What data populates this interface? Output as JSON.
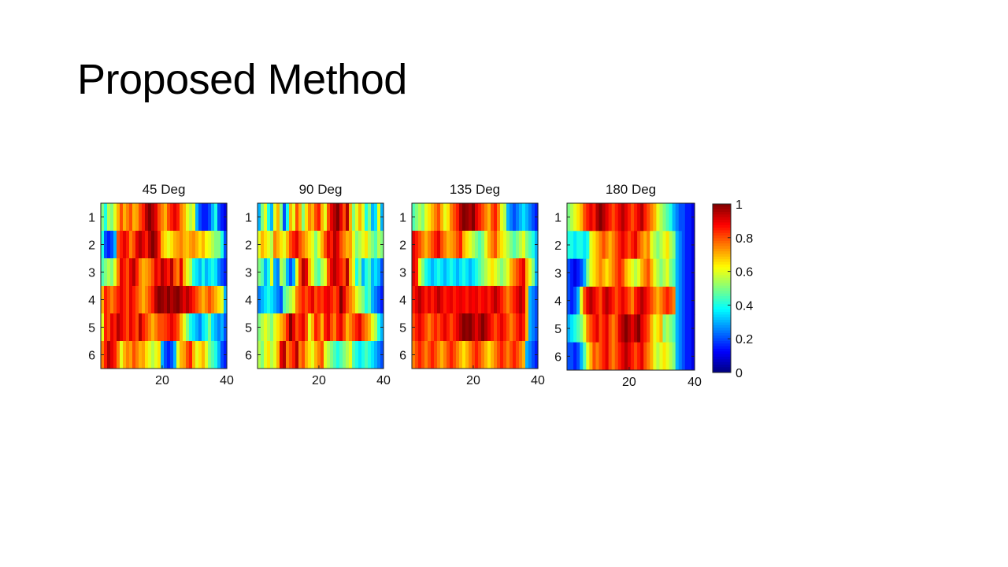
{
  "slide": {
    "title": "Proposed Method"
  },
  "chart_data": [
    {
      "type": "heatmap",
      "title": "45 Deg",
      "rows": [
        1,
        2,
        3,
        4,
        5,
        6
      ],
      "x_ticks": [
        20,
        40
      ],
      "xlim": [
        1,
        40
      ],
      "values": [
        [
          0.5,
          0.4,
          0.55,
          0.5,
          0.6,
          0.7,
          0.8,
          0.7,
          0.75,
          0.8,
          0.7,
          0.72,
          0.8,
          0.85,
          0.95,
          1,
          0.95,
          0.9,
          0.8,
          0.75,
          0.7,
          0.8,
          0.85,
          0.9,
          0.85,
          0.75,
          0.7,
          0.6,
          0.55,
          0.6,
          0.3,
          0.2,
          0.15,
          0.15,
          0.2,
          0.3,
          0.4,
          0.2,
          0.15,
          0.1
        ],
        [
          0.4,
          0.2,
          0.15,
          0.2,
          0.3,
          0.8,
          0.85,
          0.9,
          0.85,
          0.75,
          0.8,
          0.9,
          0.95,
          0.9,
          0.85,
          0.95,
          1,
          0.95,
          0.85,
          0.7,
          0.65,
          0.6,
          0.65,
          0.7,
          0.72,
          0.75,
          0.7,
          0.68,
          0.72,
          0.74,
          0.7,
          0.65,
          0.7,
          0.62,
          0.6,
          0.55,
          0.5,
          0.5,
          0.4,
          0.2
        ],
        [
          0.45,
          0.5,
          0.55,
          0.5,
          0.6,
          0.75,
          0.9,
          0.85,
          0.8,
          0.9,
          0.95,
          0.85,
          0.75,
          0.7,
          0.72,
          0.75,
          0.8,
          0.9,
          0.85,
          0.95,
          0.9,
          0.85,
          0.95,
          0.8,
          0.75,
          0.9,
          0.7,
          0.6,
          0.55,
          0.4,
          0.35,
          0.3,
          0.4,
          0.3,
          0.35,
          0.4,
          0.35,
          0.25,
          0.2,
          0.15
        ],
        [
          0.7,
          0.85,
          0.8,
          0.75,
          0.8,
          0.85,
          0.9,
          0.85,
          0.8,
          0.9,
          0.85,
          0.8,
          0.75,
          0.7,
          0.75,
          0.8,
          0.85,
          0.95,
          1,
          0.98,
          0.95,
          1,
          0.95,
          0.98,
          1,
          0.95,
          0.9,
          0.95,
          0.9,
          0.85,
          0.8,
          0.75,
          0.7,
          0.75,
          0.8,
          0.75,
          0.7,
          0.65,
          0.6,
          0.3
        ],
        [
          0.6,
          0.85,
          0.8,
          0.9,
          0.85,
          0.95,
          0.9,
          0.85,
          0.8,
          0.9,
          0.85,
          0.8,
          0.95,
          0.85,
          0.8,
          0.75,
          0.7,
          0.75,
          0.8,
          0.8,
          0.82,
          0.85,
          0.9,
          0.85,
          0.8,
          0.7,
          0.6,
          0.5,
          0.4,
          0.35,
          0.3,
          0.25,
          0.35,
          0.4,
          0.5,
          0.35,
          0.3,
          0.25,
          0.3,
          0.2
        ],
        [
          0.75,
          0.85,
          0.95,
          0.9,
          0.85,
          0.75,
          0.6,
          0.7,
          0.75,
          0.72,
          0.8,
          0.75,
          0.7,
          0.72,
          0.65,
          0.6,
          0.55,
          0.6,
          0.65,
          0.3,
          0.2,
          0.15,
          0.2,
          0.3,
          0.6,
          0.7,
          0.72,
          0.8,
          0.85,
          0.7,
          0.6,
          0.65,
          0.7,
          0.6,
          0.5,
          0.45,
          0.4,
          0.3,
          0.2,
          0.15
        ]
      ]
    },
    {
      "type": "heatmap",
      "title": "90 Deg",
      "rows": [
        1,
        2,
        3,
        4,
        5,
        6
      ],
      "x_ticks": [
        20,
        40
      ],
      "xlim": [
        1,
        40
      ],
      "values": [
        [
          0.3,
          0.5,
          0.6,
          0.4,
          0.3,
          0.6,
          0.7,
          0.5,
          0.2,
          0.4,
          0.7,
          0.6,
          0.8,
          0.7,
          0.5,
          0.65,
          0.75,
          0.7,
          0.8,
          0.85,
          0.7,
          0.6,
          0.8,
          0.9,
          0.95,
          1,
          0.9,
          0.8,
          0.95,
          0.7,
          0.5,
          0.6,
          0.7,
          0.6,
          0.4,
          0.5,
          0.3,
          0.35,
          0.6,
          0.3
        ],
        [
          0.6,
          0.7,
          0.65,
          0.6,
          0.55,
          0.75,
          0.7,
          0.65,
          0.6,
          0.7,
          0.8,
          0.85,
          0.9,
          0.8,
          0.75,
          0.7,
          0.65,
          0.6,
          0.5,
          0.6,
          0.7,
          0.8,
          0.9,
          0.85,
          0.95,
          0.9,
          0.8,
          0.75,
          0.7,
          0.72,
          0.6,
          0.5,
          0.55,
          0.6,
          0.65,
          0.55,
          0.5,
          0.45,
          0.55,
          0.5
        ],
        [
          0.5,
          0.45,
          0.3,
          0.4,
          0.6,
          0.3,
          0.25,
          0.55,
          0.5,
          0.3,
          0.2,
          0.3,
          0.6,
          0.8,
          0.95,
          0.9,
          0.7,
          0.6,
          0.5,
          0.45,
          0.55,
          0.6,
          0.8,
          0.9,
          0.95,
          0.9,
          0.85,
          0.8,
          0.95,
          0.7,
          0.6,
          0.4,
          0.5,
          0.3,
          0.4,
          0.45,
          0.3,
          0.35,
          0.3,
          0.2
        ],
        [
          0.25,
          0.3,
          0.35,
          0.4,
          0.35,
          0.3,
          0.25,
          0.2,
          0.45,
          0.5,
          0.55,
          0.6,
          0.75,
          0.8,
          0.85,
          0.8,
          0.85,
          0.9,
          0.8,
          0.85,
          0.82,
          0.88,
          0.9,
          0.85,
          0.8,
          0.85,
          1,
          0.9,
          0.8,
          0.75,
          0.7,
          0.6,
          0.55,
          0.5,
          0.4,
          0.45,
          0.3,
          0.25,
          0.2,
          0.15
        ],
        [
          0.5,
          0.55,
          0.6,
          0.55,
          0.5,
          0.6,
          0.65,
          0.7,
          0.75,
          0.85,
          1,
          0.9,
          0.8,
          0.85,
          0.9,
          0.8,
          0.6,
          0.7,
          0.85,
          0.8,
          0.7,
          0.85,
          0.9,
          0.8,
          0.75,
          0.85,
          0.9,
          0.8,
          0.7,
          0.75,
          0.8,
          0.85,
          0.9,
          0.8,
          0.75,
          0.7,
          0.6,
          0.55,
          0.4,
          0.3
        ],
        [
          0.55,
          0.5,
          0.6,
          0.65,
          0.55,
          0.6,
          0.7,
          0.9,
          0.95,
          0.75,
          0.8,
          0.85,
          0.95,
          0.75,
          0.8,
          0.7,
          0.65,
          0.6,
          0.7,
          0.75,
          0.8,
          0.6,
          0.55,
          0.5,
          0.45,
          0.4,
          0.45,
          0.5,
          0.55,
          0.6,
          0.45,
          0.4,
          0.35,
          0.4,
          0.45,
          0.4,
          0.35,
          0.3,
          0.25,
          0.2
        ]
      ]
    },
    {
      "type": "heatmap",
      "title": "135 Deg",
      "rows": [
        1,
        2,
        3,
        4,
        5,
        6
      ],
      "x_ticks": [
        20,
        40
      ],
      "xlim": [
        1,
        40
      ],
      "values": [
        [
          0.45,
          0.5,
          0.55,
          0.5,
          0.6,
          0.65,
          0.7,
          0.75,
          0.8,
          0.7,
          0.6,
          0.65,
          0.75,
          0.8,
          0.85,
          0.95,
          1,
          0.98,
          0.95,
          1,
          0.9,
          0.85,
          0.8,
          0.75,
          0.7,
          0.8,
          0.85,
          0.75,
          0.6,
          0.55,
          0.3,
          0.25,
          0.2,
          0.25,
          0.3,
          0.35,
          0.3,
          0.25,
          0.2,
          0.15
        ],
        [
          0.9,
          0.85,
          0.8,
          0.75,
          0.7,
          0.75,
          0.8,
          0.85,
          0.9,
          0.8,
          0.75,
          0.7,
          0.72,
          0.75,
          0.8,
          0.85,
          0.7,
          0.65,
          0.6,
          0.55,
          0.5,
          0.45,
          0.5,
          0.6,
          0.7,
          0.75,
          0.8,
          0.7,
          0.65,
          0.6,
          0.55,
          0.5,
          0.45,
          0.5,
          0.55,
          0.6,
          0.5,
          0.45,
          0.4,
          0.3
        ],
        [
          0.9,
          0.85,
          0.6,
          0.5,
          0.4,
          0.35,
          0.3,
          0.35,
          0.4,
          0.35,
          0.3,
          0.35,
          0.4,
          0.35,
          0.3,
          0.35,
          0.4,
          0.35,
          0.3,
          0.35,
          0.4,
          0.45,
          0.5,
          0.55,
          0.6,
          0.65,
          0.6,
          0.55,
          0.5,
          0.55,
          0.6,
          0.7,
          0.75,
          0.8,
          0.85,
          0.9,
          0.7,
          0.6,
          0.5,
          0.3
        ],
        [
          0.85,
          0.9,
          0.95,
          0.9,
          0.85,
          0.9,
          0.85,
          0.9,
          0.95,
          0.9,
          0.85,
          0.88,
          0.9,
          0.85,
          0.88,
          0.9,
          0.88,
          0.85,
          0.9,
          0.88,
          0.9,
          0.85,
          0.88,
          0.9,
          0.85,
          0.9,
          0.95,
          0.9,
          0.85,
          0.8,
          0.75,
          0.8,
          0.85,
          0.9,
          0.95,
          0.9,
          0.7,
          0.3,
          0.25,
          0.2
        ],
        [
          0.8,
          0.85,
          0.9,
          0.85,
          0.8,
          0.75,
          0.8,
          0.85,
          0.8,
          0.85,
          0.9,
          0.85,
          0.8,
          0.85,
          0.9,
          0.95,
          1,
          0.98,
          1,
          0.95,
          0.9,
          0.95,
          1,
          0.95,
          0.9,
          0.85,
          0.8,
          0.85,
          0.9,
          0.85,
          0.8,
          0.75,
          0.8,
          0.85,
          0.9,
          0.85,
          0.7,
          0.3,
          0.25,
          0.2
        ],
        [
          0.75,
          0.8,
          0.85,
          0.8,
          0.75,
          0.8,
          0.85,
          0.8,
          0.75,
          0.7,
          0.75,
          0.8,
          0.85,
          0.8,
          0.75,
          0.7,
          0.65,
          0.7,
          0.75,
          0.8,
          0.85,
          0.8,
          0.75,
          0.7,
          0.65,
          0.7,
          0.75,
          0.8,
          0.85,
          0.8,
          0.75,
          0.8,
          0.85,
          0.8,
          0.75,
          0.7,
          0.3,
          0.25,
          0.2,
          0.15
        ]
      ]
    },
    {
      "type": "heatmap",
      "title": "180 Deg",
      "rows": [
        1,
        2,
        3,
        4,
        5,
        6
      ],
      "x_ticks": [
        20,
        40
      ],
      "xlim": [
        1,
        40
      ],
      "values": [
        [
          0.5,
          0.55,
          0.6,
          0.65,
          0.7,
          0.8,
          0.85,
          0.9,
          0.85,
          0.95,
          1,
          0.95,
          0.9,
          0.85,
          0.8,
          0.85,
          0.9,
          0.95,
          0.9,
          0.85,
          0.8,
          0.85,
          0.9,
          0.95,
          0.85,
          0.8,
          0.75,
          0.7,
          0.6,
          0.55,
          0.5,
          0.45,
          0.4,
          0.3,
          0.25,
          0.2,
          0.2,
          0.15,
          0.15,
          0.1
        ],
        [
          0.4,
          0.4,
          0.35,
          0.4,
          0.4,
          0.35,
          0.4,
          0.6,
          0.65,
          0.7,
          0.75,
          0.8,
          0.75,
          0.7,
          0.75,
          0.8,
          0.85,
          0.9,
          0.85,
          0.8,
          0.85,
          0.9,
          0.8,
          0.75,
          0.7,
          0.75,
          0.6,
          0.55,
          0.5,
          0.55,
          0.6,
          0.65,
          0.55,
          0.5,
          0.3,
          0.25,
          0.2,
          0.15,
          0.15,
          0.1
        ],
        [
          0.2,
          0.15,
          0.1,
          0.15,
          0.2,
          0.3,
          0.5,
          0.6,
          0.65,
          0.7,
          0.75,
          0.7,
          0.65,
          0.7,
          0.75,
          0.8,
          0.85,
          0.8,
          0.7,
          0.65,
          0.6,
          0.55,
          0.6,
          0.7,
          0.75,
          0.8,
          0.7,
          0.6,
          0.55,
          0.5,
          0.55,
          0.6,
          0.5,
          0.45,
          0.3,
          0.25,
          0.2,
          0.15,
          0.15,
          0.1
        ],
        [
          0.2,
          0.15,
          0.2,
          0.3,
          0.6,
          0.8,
          0.9,
          0.95,
          0.9,
          0.85,
          0.8,
          0.9,
          0.95,
          0.9,
          0.85,
          0.8,
          0.85,
          0.9,
          0.85,
          0.8,
          0.75,
          0.85,
          0.9,
          0.95,
          0.9,
          0.85,
          0.8,
          0.75,
          0.7,
          0.75,
          0.8,
          0.85,
          0.8,
          0.75,
          0.3,
          0.25,
          0.2,
          0.15,
          0.15,
          0.1
        ],
        [
          0.3,
          0.35,
          0.4,
          0.45,
          0.5,
          0.6,
          0.75,
          0.8,
          0.85,
          0.9,
          0.8,
          0.85,
          0.9,
          0.8,
          0.75,
          0.8,
          0.9,
          0.95,
          1,
          0.95,
          0.9,
          0.95,
          1,
          0.9,
          0.85,
          0.8,
          0.7,
          0.6,
          0.65,
          0.7,
          0.5,
          0.55,
          0.5,
          0.45,
          0.3,
          0.25,
          0.2,
          0.15,
          0.15,
          0.1
        ],
        [
          0.2,
          0.2,
          0.15,
          0.2,
          0.3,
          0.45,
          0.6,
          0.7,
          0.8,
          0.75,
          0.8,
          0.85,
          0.9,
          0.8,
          0.75,
          0.8,
          0.85,
          0.9,
          0.95,
          0.9,
          0.85,
          0.8,
          0.85,
          0.9,
          0.8,
          0.75,
          0.7,
          0.6,
          0.55,
          0.6,
          0.65,
          0.6,
          0.55,
          0.5,
          0.3,
          0.25,
          0.2,
          0.15,
          0.15,
          0.1
        ]
      ]
    }
  ],
  "colorbar": {
    "colormap": "jet",
    "ticks": [
      "0",
      "0.2",
      "0.4",
      "0.6",
      "0.8",
      "1"
    ]
  }
}
